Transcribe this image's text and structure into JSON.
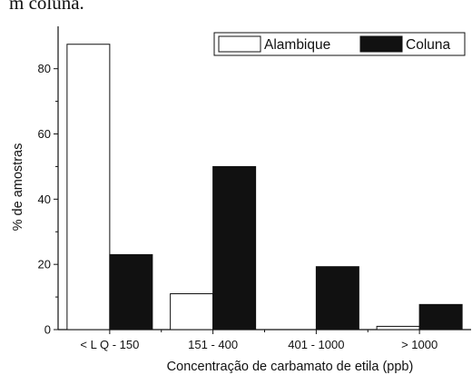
{
  "page_caption": "m coluna.",
  "chart_data": {
    "type": "bar",
    "title": "",
    "xlabel": "Concentração de carbamato de etila (ppb)",
    "ylabel": "% de amostras",
    "categories": [
      "< L Q  - 150",
      "151 - 400",
      "401 - 1000",
      "> 1000"
    ],
    "series": [
      {
        "name": "Alambique",
        "values": [
          87.5,
          11,
          0,
          1
        ],
        "color": "#ffffff"
      },
      {
        "name": "Coluna",
        "values": [
          23,
          50,
          19.3,
          7.7
        ],
        "color": "#111111"
      }
    ],
    "ylim": [
      0,
      93
    ],
    "yticks": [
      0,
      20,
      40,
      60,
      80
    ],
    "grid": false,
    "legend": "top-right"
  }
}
